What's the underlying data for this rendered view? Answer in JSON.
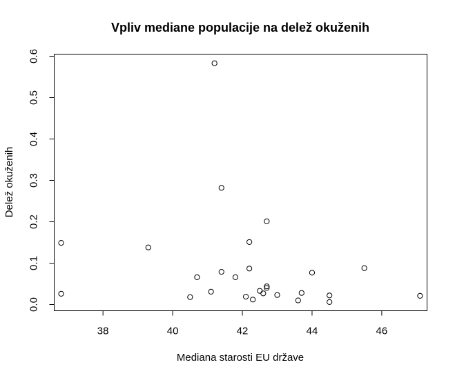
{
  "chart_data": {
    "type": "scatter",
    "title": "Vpliv mediane populacije na delež okuženih",
    "xlabel": "Mediana starosti EU države",
    "ylabel": "Delež okuženih",
    "xlim": [
      36.6,
      47.3
    ],
    "ylim": [
      -0.015,
      0.605
    ],
    "x_ticks": [
      38,
      40,
      42,
      44,
      46
    ],
    "y_ticks": [
      0.0,
      0.1,
      0.2,
      0.3,
      0.4,
      0.5,
      0.6
    ],
    "x_tick_labels": [
      "38",
      "40",
      "42",
      "44",
      "46"
    ],
    "y_tick_labels": [
      "0.0",
      "0.1",
      "0.2",
      "0.3",
      "0.4",
      "0.5",
      "0.6"
    ],
    "grid": false,
    "legend": "none",
    "points": [
      {
        "x": 36.8,
        "y": 0.149
      },
      {
        "x": 36.8,
        "y": 0.026
      },
      {
        "x": 39.3,
        "y": 0.138
      },
      {
        "x": 40.5,
        "y": 0.018
      },
      {
        "x": 40.7,
        "y": 0.066
      },
      {
        "x": 41.1,
        "y": 0.031
      },
      {
        "x": 41.2,
        "y": 0.583
      },
      {
        "x": 41.4,
        "y": 0.282
      },
      {
        "x": 41.4,
        "y": 0.079
      },
      {
        "x": 41.8,
        "y": 0.066
      },
      {
        "x": 42.1,
        "y": 0.019
      },
      {
        "x": 42.2,
        "y": 0.151
      },
      {
        "x": 42.2,
        "y": 0.087
      },
      {
        "x": 42.3,
        "y": 0.012
      },
      {
        "x": 42.5,
        "y": 0.033
      },
      {
        "x": 42.6,
        "y": 0.027
      },
      {
        "x": 42.7,
        "y": 0.201
      },
      {
        "x": 42.7,
        "y": 0.044
      },
      {
        "x": 42.7,
        "y": 0.04
      },
      {
        "x": 43.0,
        "y": 0.023
      },
      {
        "x": 43.6,
        "y": 0.01
      },
      {
        "x": 43.7,
        "y": 0.028
      },
      {
        "x": 44.0,
        "y": 0.077
      },
      {
        "x": 44.5,
        "y": 0.022
      },
      {
        "x": 44.5,
        "y": 0.006
      },
      {
        "x": 45.5,
        "y": 0.088
      },
      {
        "x": 47.1,
        "y": 0.021
      }
    ]
  }
}
